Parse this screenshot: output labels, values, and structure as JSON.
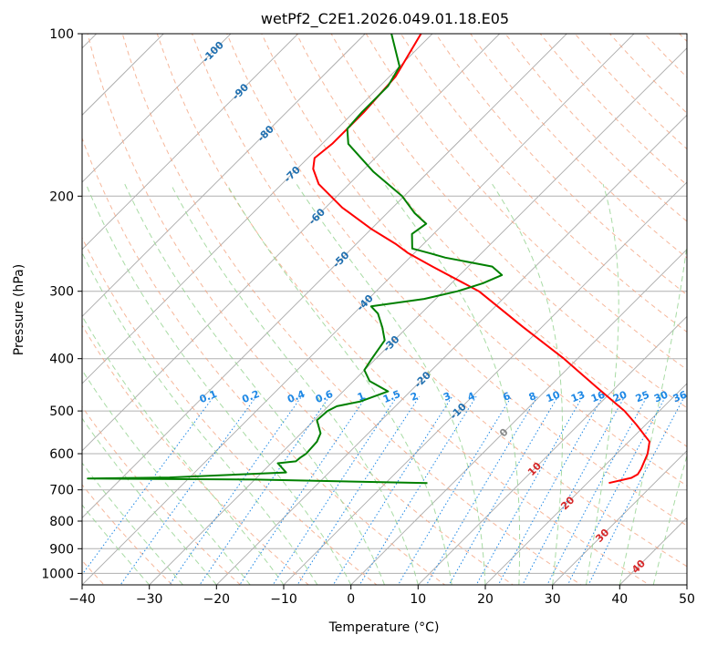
{
  "chart_data": {
    "type": "skew-t log-p",
    "title": "wetPf2_C2E1.2026.049.01.18.E05",
    "xlabel": "Temperature (°C)",
    "ylabel": "Pressure (hPa)",
    "xlim": [
      -40,
      50
    ],
    "plim": [
      1050,
      100
    ],
    "x_ticks": [
      -40,
      -30,
      -20,
      -10,
      0,
      10,
      20,
      30,
      40,
      50
    ],
    "y_ticks": [
      1000,
      900,
      800,
      700,
      600,
      500,
      400,
      300,
      200,
      100
    ],
    "grid": true,
    "colors": {
      "temperature": "#ff0000",
      "dewpoint": "#008000",
      "dry_adiabat": "#f4a582",
      "moist_adiabat": "#99d594",
      "mixing_ratio": "#1e88e5",
      "isotherm": "#aaaaaa",
      "isotherm_label": "#1f6fb0",
      "isotherm_label_warm": "#d62728",
      "isotherm_label_zero": "#888888",
      "isobar": "#b0b0b0"
    },
    "isotherm_labels": [
      {
        "t": -100,
        "p": 108,
        "text": "-100"
      },
      {
        "t": -90,
        "p": 128,
        "text": "-90"
      },
      {
        "t": -80,
        "p": 153,
        "text": "-80"
      },
      {
        "t": -70,
        "p": 182,
        "text": "-70"
      },
      {
        "t": -60,
        "p": 218,
        "text": "-60"
      },
      {
        "t": -50,
        "p": 262,
        "text": "-50"
      },
      {
        "t": -40,
        "p": 315,
        "text": "-40"
      },
      {
        "t": -30,
        "p": 375,
        "text": "-30"
      },
      {
        "t": -20,
        "p": 437,
        "text": "-20"
      },
      {
        "t": -10,
        "p": 500,
        "text": "-10"
      },
      {
        "t": 0,
        "p": 548,
        "text": "0"
      },
      {
        "t": 10,
        "p": 640,
        "text": "10"
      },
      {
        "t": 20,
        "p": 740,
        "text": "20"
      },
      {
        "t": 30,
        "p": 850,
        "text": "30"
      },
      {
        "t": 40,
        "p": 970,
        "text": "40"
      }
    ],
    "mixing_ratio_labels": [
      "0.1",
      "0.2",
      "0.4",
      "0.6",
      "1",
      "1.5",
      "2",
      "3",
      "4",
      "6",
      "8",
      "10",
      "13",
      "16",
      "20",
      "25",
      "30",
      "36"
    ],
    "mixing_ratio_values": [
      0.1,
      0.2,
      0.4,
      0.6,
      1,
      1.5,
      2,
      3,
      4,
      6,
      8,
      10,
      13,
      16,
      20,
      25,
      30,
      36
    ],
    "temperature": {
      "name": "Temperature",
      "p": [
        680,
        665,
        655,
        640,
        600,
        570,
        530,
        500,
        450,
        400,
        350,
        300,
        270,
        255,
        245,
        230,
        210,
        190,
        178,
        170,
        160,
        140,
        120,
        100
      ],
      "t": [
        23.2,
        25.8,
        26.2,
        25.9,
        24.6,
        23.1,
        18.6,
        14.8,
        6.8,
        -2.0,
        -12.7,
        -24.7,
        -35.3,
        -40.9,
        -44.2,
        -50.0,
        -57.5,
        -64.5,
        -67.6,
        -69.0,
        -68.5,
        -68.5,
        -69.1,
        -71.7
      ]
    },
    "dewpoint": {
      "name": "Dewpoint",
      "p": [
        680,
        670,
        667,
        664,
        650,
        625,
        620,
        610,
        600,
        570,
        550,
        520,
        500,
        490,
        480,
        460,
        440,
        420,
        400,
        370,
        350,
        330,
        320,
        310,
        300,
        290,
        280,
        270,
        260,
        255,
        250,
        235,
        225,
        215,
        200,
        180,
        160,
        150,
        140,
        125,
        115,
        100
      ],
      "t": [
        -3.8,
        -30.0,
        -55.0,
        -43.0,
        -26.4,
        -29.0,
        -26.6,
        -26.5,
        -26.2,
        -26.4,
        -27.1,
        -29.6,
        -29.4,
        -28.7,
        -25.9,
        -23.3,
        -27.6,
        -30.0,
        -30.6,
        -31.4,
        -33.7,
        -36.4,
        -38.5,
        -31.7,
        -27.9,
        -25.3,
        -23.7,
        -26.4,
        -34.7,
        -37.7,
        -41.0,
        -43.2,
        -42.6,
        -45.9,
        -50.3,
        -58.3,
        -66.1,
        -68.5,
        -68.8,
        -68.8,
        -70.0,
        -76.1
      ]
    }
  }
}
